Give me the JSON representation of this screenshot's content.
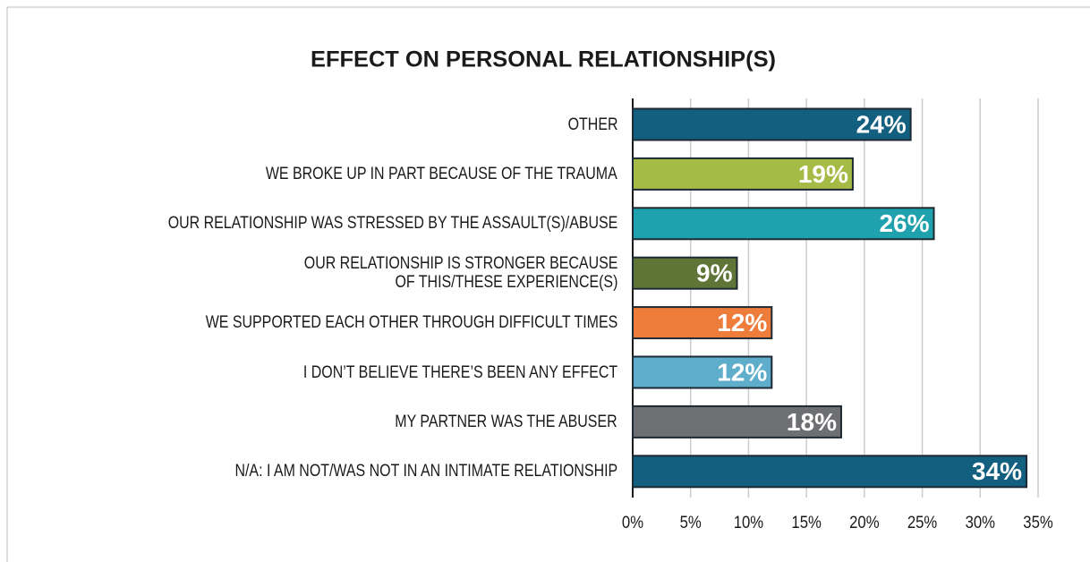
{
  "chart_data": {
    "type": "bar",
    "orientation": "horizontal",
    "title": "EFFECT ON PERSONAL RELATIONSHIP(S)",
    "categories": [
      "OTHER",
      "WE BROKE UP IN PART BECAUSE OF THE TRAUMA",
      "OUR RELATIONSHIP WAS STRESSED BY THE ASSAULT(S)/ABUSE",
      "OUR RELATIONSHIP IS STRONGER BECAUSE\nOF THIS/THESE EXPERIENCE(S)",
      "WE SUPPORTED EACH OTHER THROUGH DIFFICULT TIMES",
      "I DON’T BELIEVE THERE’S BEEN ANY EFFECT",
      "MY PARTNER WAS THE ABUSER",
      "N/A: I AM NOT/WAS NOT IN AN INTIMATE RELATIONSHIP"
    ],
    "values": [
      24,
      19,
      26,
      9,
      12,
      12,
      18,
      34
    ],
    "value_labels": [
      "24%",
      "19%",
      "26%",
      "9%",
      "12%",
      "12%",
      "18%",
      "34%"
    ],
    "colors": [
      "#135f7f",
      "#a5bb45",
      "#1fa2ad",
      "#5f7538",
      "#ee7c3a",
      "#5eadca",
      "#6e6f72",
      "#135f7f"
    ],
    "xlim": [
      0,
      35
    ],
    "xticks": [
      {
        "value": 0,
        "label": "0%"
      },
      {
        "value": 5,
        "label": "5%"
      },
      {
        "value": 10,
        "label": "10%"
      },
      {
        "value": 15,
        "label": "15%"
      },
      {
        "value": 20,
        "label": "20%"
      },
      {
        "value": 25,
        "label": "25%"
      },
      {
        "value": 30,
        "label": "30%"
      },
      {
        "value": 35,
        "label": "35%"
      }
    ],
    "grid": true
  }
}
